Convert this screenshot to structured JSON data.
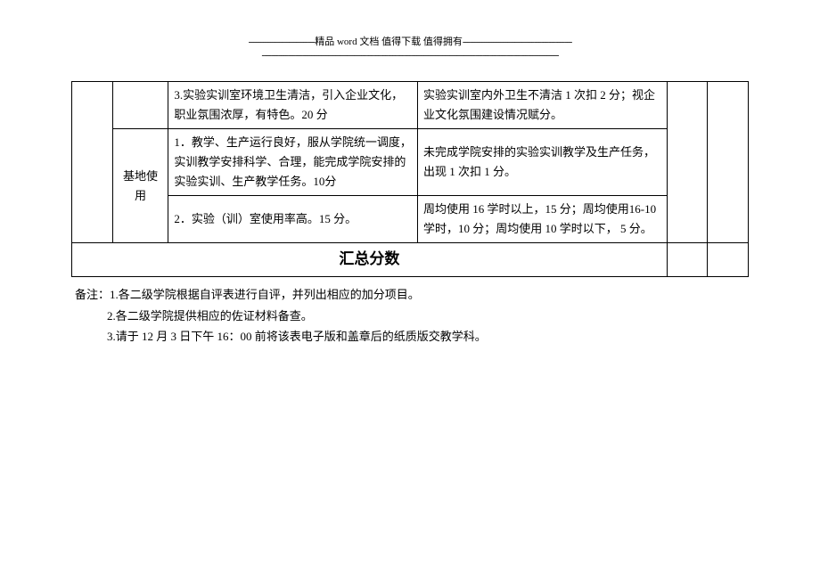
{
  "header": {
    "line1_prefix": "----------------------------",
    "line1_main": "精品 word 文档  值得下载  值得拥有",
    "line1_suffix": "----------------------------------------------",
    "line2": "-----------------------------------------------------------------------------------------------------------------------------"
  },
  "table": {
    "row1": {
      "criteria": "3.实验实训室环境卫生清洁，引入企业文化，职业氛围浓厚，有特色。20 分",
      "scoring": "实验实训室内外卫生不清洁 1 次扣 2 分；视企业文化氛围建设情况赋分。"
    },
    "row_group_label": "基地使用",
    "row2": {
      "criteria": "1．教学、生产运行良好，服从学院统一调度，实训教学安排科学、合理，能完成学院安排的实验实训、生产教学任务。10分",
      "scoring": "未完成学院安排的实验实训教学及生产任务，出现 1 次扣 1 分。"
    },
    "row3": {
      "criteria": "2．实验（训）室使用率高。15 分。",
      "scoring": "周均使用 16 学时以上，15 分；周均使用16-10 学时，10 分；周均使用 10 学时以下， 5 分。"
    },
    "summary_label": "汇总分数"
  },
  "notes": {
    "prefix": "备注：",
    "n1": "1.各二级学院根据自评表进行自评，并列出相应的加分项目。",
    "n2": "2.各二级学院提供相应的佐证材料备查。",
    "n3": "3.请于 12 月 3 日下午 16：00 前将该表电子版和盖章后的纸质版交教学科。"
  }
}
